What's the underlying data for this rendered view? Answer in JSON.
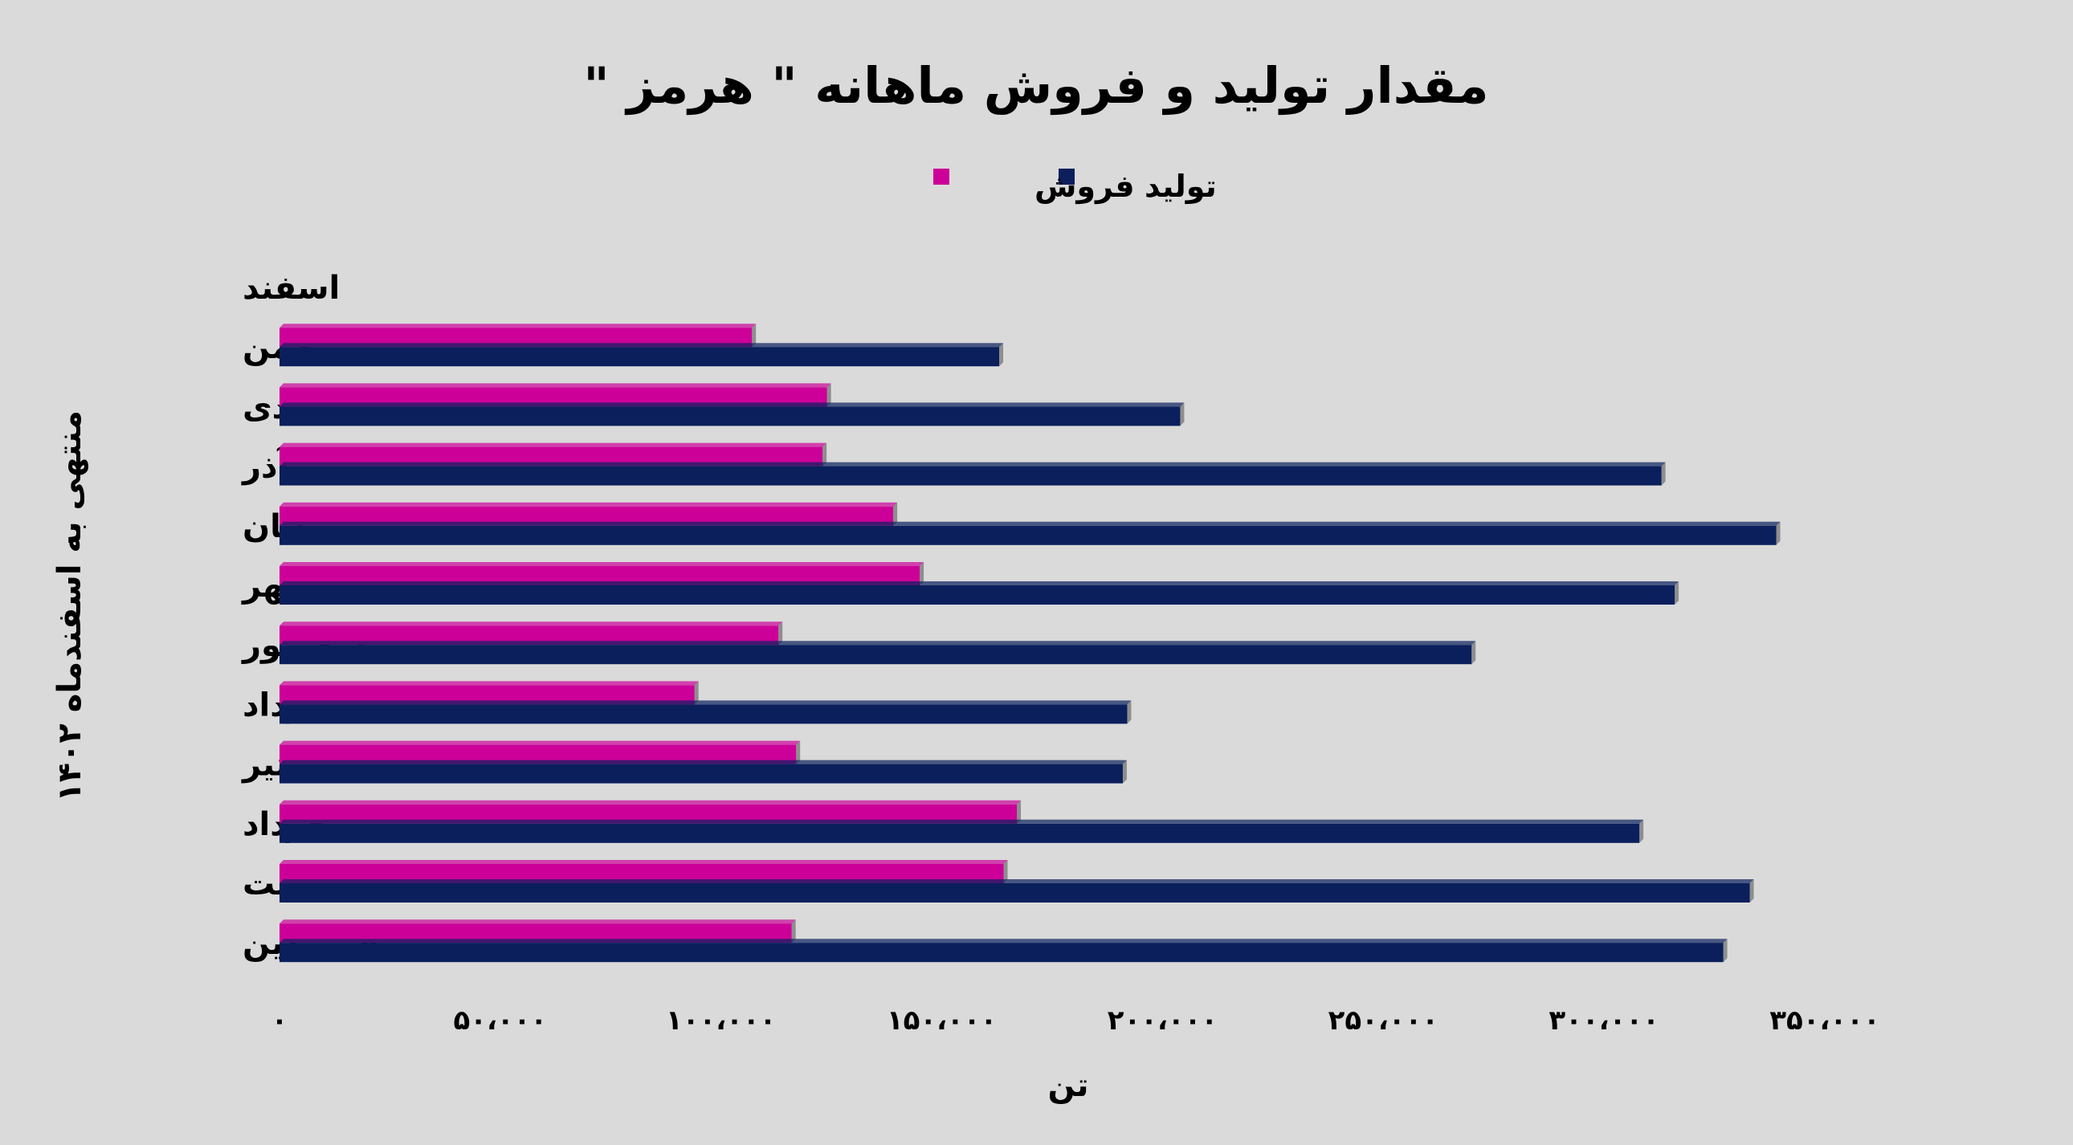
{
  "chart_data": {
    "type": "bar",
    "orientation": "horizontal",
    "title": "مقدار تولید و فروش ماهانه \" هرمز \"",
    "xlabel": "تن",
    "ylabel": "منتهی به اسفندماه ۱۴۰۲",
    "categories": [
      "فروردین",
      "اردیبهشت",
      "خرداد",
      "تیر",
      "مرداد",
      "شهریور",
      "مهر",
      "آبان",
      "آذر",
      "دی",
      "بهمن",
      "اسفند"
    ],
    "xlim": [
      0,
      350000
    ],
    "xticks": [
      0,
      50000,
      100000,
      150000,
      200000,
      250000,
      300000,
      350000
    ],
    "xtick_labels": [
      "۰",
      "۵۰،۰۰۰",
      "۱۰۰،۰۰۰",
      "۱۵۰،۰۰۰",
      "۲۰۰،۰۰۰",
      "۲۵۰،۰۰۰",
      "۳۰۰،۰۰۰",
      "۳۵۰،۰۰۰"
    ],
    "legend_position": "top",
    "grid": false,
    "series": [
      {
        "name": "فروش",
        "color": "#cc0099",
        "values": [
          116000,
          164000,
          167000,
          117000,
          94000,
          113000,
          145000,
          139000,
          123000,
          124000,
          107000,
          null
        ]
      },
      {
        "name": "تولید",
        "color": "#0a1f5c",
        "values": [
          327000,
          333000,
          308000,
          191000,
          192000,
          270000,
          316000,
          339000,
          313000,
          204000,
          163000,
          null
        ]
      }
    ]
  }
}
